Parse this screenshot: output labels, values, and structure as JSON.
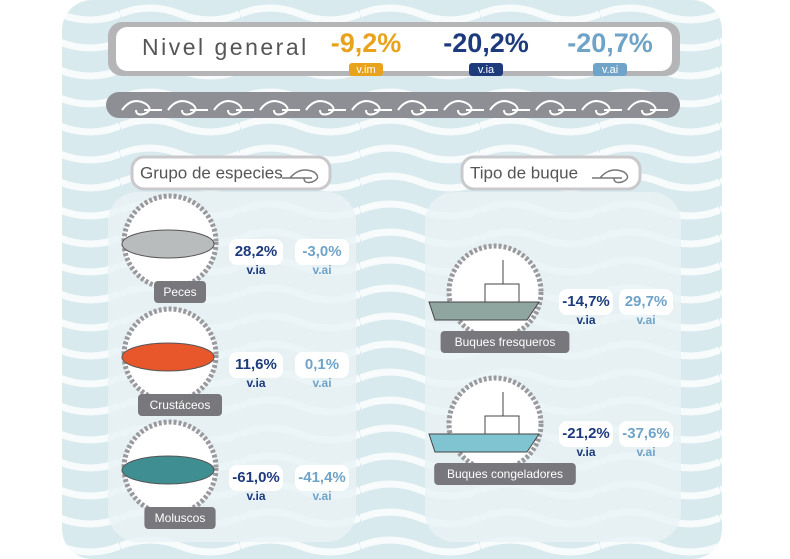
{
  "header": {
    "title": "Nivel general",
    "items": [
      {
        "value": "-9,2%",
        "label": "v.im"
      },
      {
        "value": "-20,2%",
        "label": "v.ia"
      },
      {
        "value": "-20,7%",
        "label": "v.ai"
      }
    ]
  },
  "groups": [
    {
      "title": "Grupo de especies",
      "items": [
        {
          "name": "Peces",
          "ia": "28,2%",
          "ia_label": "v.ia",
          "ai": "-3,0%",
          "ai_label": "v.ai"
        },
        {
          "name": "Crustáceos",
          "ia": "11,6%",
          "ia_label": "v.ia",
          "ai": "0,1%",
          "ai_label": "v.ai"
        },
        {
          "name": "Moluscos",
          "ia": "-61,0%",
          "ia_label": "v.ia",
          "ai": "-41,4%",
          "ai_label": "v.ai"
        }
      ]
    },
    {
      "title": "Tipo de buque",
      "items": [
        {
          "name": "Buques fresqueros",
          "ia": "-14,7%",
          "ia_label": "v.ia",
          "ai": "29,7%",
          "ai_label": "v.ai"
        },
        {
          "name": "Buques congeladores",
          "ia": "-21,2%",
          "ia_label": "v.ia",
          "ai": "-37,6%",
          "ai_label": "v.ai"
        }
      ]
    }
  ]
}
